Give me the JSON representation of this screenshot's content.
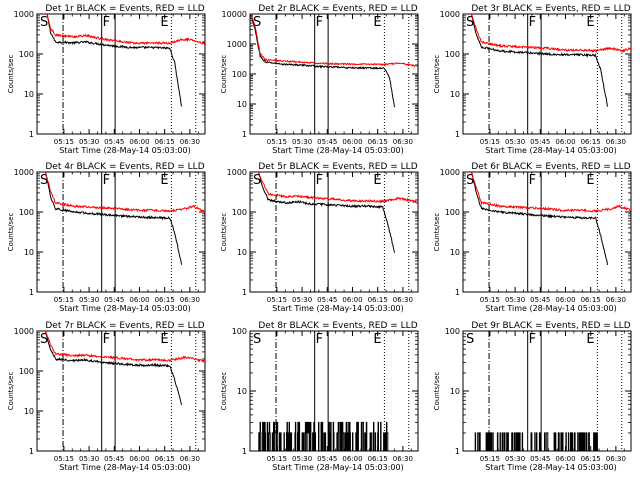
{
  "chart_data": [
    {
      "type": "line",
      "title": "Det 1r BLACK = Events, RED = LLD",
      "ylabel": "Counts/sec",
      "xlabel": "Start Time (28-May-14 05:03:00)",
      "yscale": "log",
      "ylim": [
        1,
        1000
      ],
      "ytick_labels": [
        "1",
        "10",
        "100",
        "1000"
      ],
      "xtick_labels": [
        "05:15",
        "05:30",
        "05:45",
        "06:00",
        "06:15",
        "06:30"
      ],
      "markers": [
        "S",
        "F",
        "E"
      ],
      "series": [
        {
          "color": "#000000",
          "profile": [
            [
              0,
              2000
            ],
            [
              6,
              1000
            ],
            [
              8,
              350
            ],
            [
              11,
              200
            ],
            [
              22,
              190
            ],
            [
              29,
              200
            ],
            [
              36,
              180
            ],
            [
              45,
              160
            ],
            [
              52,
              150
            ],
            [
              58,
              145
            ],
            [
              70,
              145
            ],
            [
              78,
              140
            ],
            [
              79,
              140
            ],
            [
              82,
              60
            ],
            [
              86,
              5
            ]
          ]
        },
        {
          "color": "#ff0000",
          "profile": [
            [
              0,
              2000
            ],
            [
              6,
              1000
            ],
            [
              8,
              450
            ],
            [
              11,
              300
            ],
            [
              22,
              270
            ],
            [
              29,
              290
            ],
            [
              36,
              250
            ],
            [
              45,
              220
            ],
            [
              52,
              200
            ],
            [
              58,
              185
            ],
            [
              70,
              190
            ],
            [
              78,
              185
            ],
            [
              79,
              185
            ],
            [
              86,
              230
            ],
            [
              92,
              230
            ],
            [
              100,
              180
            ]
          ]
        }
      ]
    },
    {
      "type": "line",
      "title": "Det 2r BLACK = Events, RED = LLD",
      "ylabel": "Counts/sec",
      "xlabel": "Start Time (28-May-14 05:03:00)",
      "yscale": "log",
      "ylim": [
        1,
        10000
      ],
      "ytick_labels": [
        "1",
        "10",
        "100",
        "1000",
        "10000"
      ],
      "xtick_labels": [
        "05:15",
        "05:30",
        "05:45",
        "06:00",
        "06:15",
        "06:30"
      ],
      "markers": [
        "S",
        "F",
        "E"
      ],
      "series": [
        {
          "color": "#000000",
          "profile": [
            [
              0,
              12000
            ],
            [
              3,
              3000
            ],
            [
              6,
              400
            ],
            [
              9,
              250
            ],
            [
              20,
              210
            ],
            [
              30,
              200
            ],
            [
              40,
              180
            ],
            [
              50,
              170
            ],
            [
              60,
              160
            ],
            [
              70,
              160
            ],
            [
              78,
              155
            ],
            [
              80,
              155
            ],
            [
              83,
              80
            ],
            [
              86,
              8
            ]
          ]
        },
        {
          "color": "#ff0000",
          "profile": [
            [
              0,
              12000
            ],
            [
              3,
              4000
            ],
            [
              6,
              500
            ],
            [
              9,
              300
            ],
            [
              20,
              270
            ],
            [
              30,
              250
            ],
            [
              40,
              230
            ],
            [
              50,
              220
            ],
            [
              60,
              210
            ],
            [
              70,
              210
            ],
            [
              78,
              210
            ],
            [
              80,
              210
            ],
            [
              90,
              230
            ],
            [
              100,
              180
            ]
          ]
        }
      ]
    },
    {
      "type": "line",
      "title": "Det 3r BLACK = Events, RED = LLD",
      "ylabel": "Counts/sec",
      "xlabel": "Start Time (28-May-14 05:03:00)",
      "yscale": "log",
      "ylim": [
        1,
        1000
      ],
      "ytick_labels": [
        "1",
        "10",
        "100",
        "1000"
      ],
      "xtick_labels": [
        "05:15",
        "05:30",
        "05:45",
        "06:00",
        "06:15",
        "06:30"
      ],
      "markers": [
        "S",
        "F",
        "E"
      ],
      "series": [
        {
          "color": "#000000",
          "profile": [
            [
              0,
              2000
            ],
            [
              5,
              1000
            ],
            [
              8,
              300
            ],
            [
              11,
              150
            ],
            [
              22,
              120
            ],
            [
              35,
              110
            ],
            [
              50,
              100
            ],
            [
              60,
              95
            ],
            [
              70,
              95
            ],
            [
              79,
              92
            ],
            [
              82,
              40
            ],
            [
              86,
              5
            ]
          ]
        },
        {
          "color": "#ff0000",
          "profile": [
            [
              0,
              2000
            ],
            [
              5,
              1000
            ],
            [
              8,
              400
            ],
            [
              11,
              200
            ],
            [
              22,
              160
            ],
            [
              35,
              150
            ],
            [
              50,
              140
            ],
            [
              60,
              125
            ],
            [
              70,
              125
            ],
            [
              79,
              120
            ],
            [
              88,
              140
            ],
            [
              95,
              120
            ],
            [
              100,
              140
            ]
          ]
        }
      ]
    },
    {
      "type": "line",
      "title": "Det 4r BLACK = Events, RED = LLD",
      "ylabel": "Counts/sec",
      "xlabel": "Start Time (28-May-14 05:03:00)",
      "yscale": "log",
      "ylim": [
        1,
        1000
      ],
      "ytick_labels": [
        "1",
        "10",
        "100",
        "1000"
      ],
      "xtick_labels": [
        "05:15",
        "05:30",
        "05:45",
        "06:00",
        "06:15",
        "06:30"
      ],
      "markers": [
        "S",
        "F",
        "E"
      ],
      "series": [
        {
          "color": "#000000",
          "profile": [
            [
              0,
              2000
            ],
            [
              5,
              1000
            ],
            [
              8,
              250
            ],
            [
              11,
              120
            ],
            [
              22,
              100
            ],
            [
              35,
              90
            ],
            [
              50,
              80
            ],
            [
              60,
              75
            ],
            [
              70,
              72
            ],
            [
              79,
              70
            ],
            [
              82,
              30
            ],
            [
              86,
              5
            ]
          ]
        },
        {
          "color": "#ff0000",
          "profile": [
            [
              0,
              2000
            ],
            [
              5,
              1000
            ],
            [
              8,
              350
            ],
            [
              11,
              170
            ],
            [
              22,
              140
            ],
            [
              35,
              130
            ],
            [
              50,
              120
            ],
            [
              60,
              110
            ],
            [
              70,
              110
            ],
            [
              79,
              105
            ],
            [
              88,
              120
            ],
            [
              93,
              140
            ],
            [
              100,
              100
            ]
          ]
        }
      ]
    },
    {
      "type": "line",
      "title": "Det 5r BLACK = Events, RED = LLD",
      "ylabel": "Counts/sec",
      "xlabel": "Start Time (28-May-14 05:03:00)",
      "yscale": "log",
      "ylim": [
        1,
        1000
      ],
      "ytick_labels": [
        "1",
        "10",
        "100",
        "1000"
      ],
      "xtick_labels": [
        "05:15",
        "05:30",
        "05:45",
        "06:00",
        "06:15",
        "06:30"
      ],
      "markers": [
        "S",
        "F",
        "E"
      ],
      "series": [
        {
          "color": "#000000",
          "profile": [
            [
              0,
              2000
            ],
            [
              5,
              1000
            ],
            [
              8,
              350
            ],
            [
              11,
              200
            ],
            [
              22,
              170
            ],
            [
              29,
              180
            ],
            [
              36,
              160
            ],
            [
              50,
              150
            ],
            [
              60,
              140
            ],
            [
              70,
              140
            ],
            [
              79,
              135
            ],
            [
              82,
              50
            ],
            [
              86,
              10
            ]
          ]
        },
        {
          "color": "#ff0000",
          "profile": [
            [
              0,
              2000
            ],
            [
              5,
              1000
            ],
            [
              8,
              500
            ],
            [
              11,
              280
            ],
            [
              22,
              240
            ],
            [
              29,
              250
            ],
            [
              36,
              230
            ],
            [
              50,
              210
            ],
            [
              60,
              190
            ],
            [
              70,
              190
            ],
            [
              79,
              185
            ],
            [
              88,
              220
            ],
            [
              94,
              200
            ],
            [
              100,
              170
            ]
          ]
        }
      ]
    },
    {
      "type": "line",
      "title": "Det 6r BLACK = Events, RED = LLD",
      "ylabel": "Counts/sec",
      "xlabel": "Start Time (28-May-14 05:03:00)",
      "yscale": "log",
      "ylim": [
        1,
        1000
      ],
      "ytick_labels": [
        "1",
        "10",
        "100",
        "1000"
      ],
      "xtick_labels": [
        "05:15",
        "05:30",
        "05:45",
        "06:00",
        "06:15",
        "06:30"
      ],
      "markers": [
        "S",
        "F",
        "E"
      ],
      "series": [
        {
          "color": "#000000",
          "profile": [
            [
              0,
              2000
            ],
            [
              5,
              1000
            ],
            [
              8,
              300
            ],
            [
              11,
              120
            ],
            [
              22,
              100
            ],
            [
              35,
              90
            ],
            [
              50,
              80
            ],
            [
              60,
              75
            ],
            [
              70,
              72
            ],
            [
              79,
              70
            ],
            [
              82,
              25
            ],
            [
              86,
              5
            ]
          ]
        },
        {
          "color": "#ff0000",
          "profile": [
            [
              0,
              2000
            ],
            [
              5,
              1000
            ],
            [
              8,
              400
            ],
            [
              11,
              170
            ],
            [
              22,
              140
            ],
            [
              35,
              130
            ],
            [
              50,
              120
            ],
            [
              60,
              110
            ],
            [
              70,
              110
            ],
            [
              79,
              105
            ],
            [
              88,
              120
            ],
            [
              93,
              140
            ],
            [
              100,
              110
            ]
          ]
        }
      ]
    },
    {
      "type": "line",
      "title": "Det 7r BLACK = Events, RED = LLD",
      "ylabel": "Counts/sec",
      "xlabel": "Start Time (28-May-14 05:03:00)",
      "yscale": "log",
      "ylim": [
        1,
        1000
      ],
      "ytick_labels": [
        "1",
        "10",
        "100",
        "1000"
      ],
      "xtick_labels": [
        "05:15",
        "05:30",
        "05:45",
        "06:00",
        "06:15",
        "06:30"
      ],
      "markers": [
        "S",
        "F",
        "E"
      ],
      "series": [
        {
          "color": "#000000",
          "profile": [
            [
              0,
              2000
            ],
            [
              5,
              1000
            ],
            [
              8,
              350
            ],
            [
              11,
              200
            ],
            [
              22,
              180
            ],
            [
              29,
              190
            ],
            [
              36,
              170
            ],
            [
              50,
              150
            ],
            [
              60,
              140
            ],
            [
              70,
              140
            ],
            [
              79,
              135
            ],
            [
              82,
              60
            ],
            [
              86,
              15
            ]
          ]
        },
        {
          "color": "#ff0000",
          "profile": [
            [
              0,
              2000
            ],
            [
              5,
              1000
            ],
            [
              8,
              450
            ],
            [
              11,
              270
            ],
            [
              22,
              240
            ],
            [
              29,
              250
            ],
            [
              36,
              230
            ],
            [
              50,
              210
            ],
            [
              60,
              190
            ],
            [
              70,
              190
            ],
            [
              79,
              185
            ],
            [
              88,
              220
            ],
            [
              94,
              200
            ],
            [
              100,
              170
            ]
          ]
        }
      ]
    },
    {
      "type": "line",
      "title": "Det 8r BLACK = Events, RED = LLD",
      "ylabel": "Counts/sec",
      "xlabel": "Start Time (28-May-14 05:03:00)",
      "yscale": "log",
      "ylim": [
        1,
        100
      ],
      "ytick_labels": [
        "1",
        "10",
        "100"
      ],
      "xtick_labels": [
        "05:15",
        "05:30",
        "05:45",
        "06:00",
        "06:15",
        "06:30"
      ],
      "markers": [
        "S",
        "F",
        "E"
      ],
      "series": [
        {
          "color": "#000000",
          "noise_counts": {
            "from": 5,
            "to": 82,
            "levels": [
              1,
              2,
              3
            ],
            "description": "sparse integer count rate between 1 and 3 counts/sec"
          }
        }
      ]
    },
    {
      "type": "line",
      "title": "Det 9r BLACK = Events, RED = LLD",
      "ylabel": "Counts/sec",
      "xlabel": "Start Time (28-May-14 05:03:00)",
      "yscale": "log",
      "ylim": [
        1,
        100
      ],
      "ytick_labels": [
        "1",
        "10",
        "100"
      ],
      "xtick_labels": [
        "05:15",
        "05:30",
        "05:45",
        "06:00",
        "06:15",
        "06:30"
      ],
      "markers": [
        "S",
        "F",
        "E"
      ],
      "series": [
        {
          "color": "#000000",
          "noise_counts": {
            "from": 5,
            "to": 82,
            "levels": [
              1,
              2
            ],
            "description": "sparse integer count rate between 1 and 2 counts/sec"
          }
        }
      ]
    }
  ]
}
